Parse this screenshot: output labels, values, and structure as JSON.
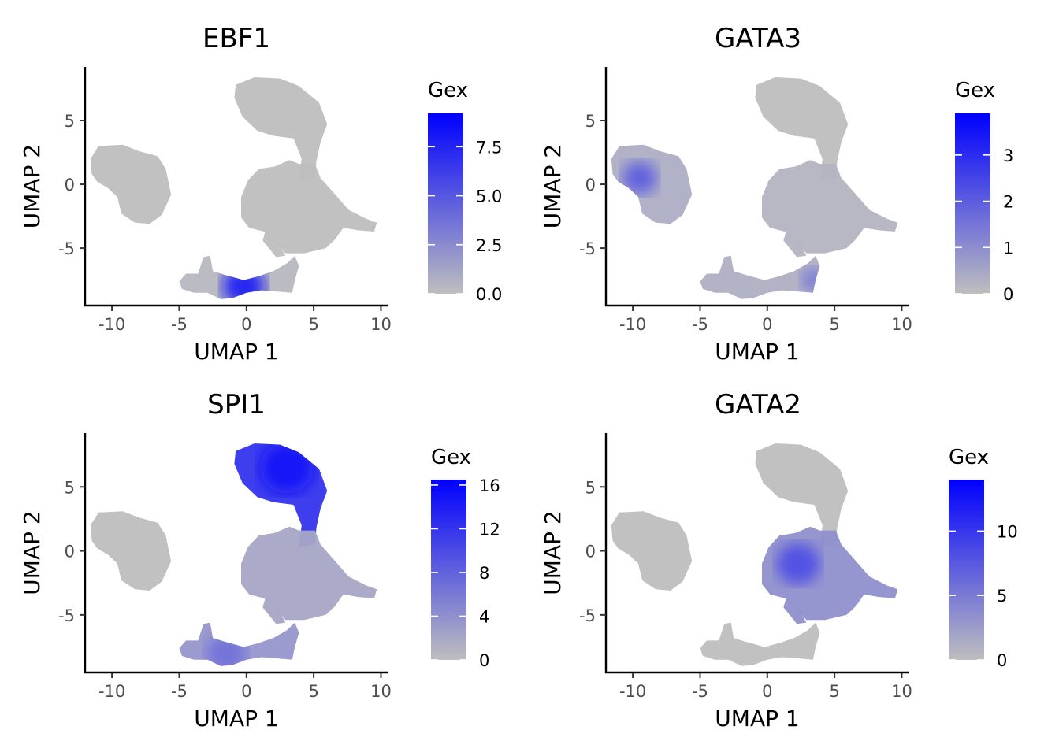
{
  "chart_data": [
    {
      "type": "scatter",
      "title": "EBF1",
      "xlabel": "UMAP 1",
      "ylabel": "UMAP 2",
      "xlim": [
        -12,
        10.5
      ],
      "ylim": [
        -9.5,
        9.2
      ],
      "x_ticks": [
        -10,
        -5,
        0,
        5,
        10
      ],
      "y_ticks": [
        -5,
        0,
        5
      ],
      "x_tick_labels": [
        "-10",
        "-5",
        "0",
        "5",
        "10"
      ],
      "y_tick_labels": [
        "-5",
        "0",
        "5"
      ],
      "grid": false,
      "legend": {
        "title": "Gex",
        "position": "right",
        "min": 0,
        "max": 9.2,
        "ticks": [
          0,
          2.5,
          5,
          7.5
        ],
        "tick_labels": [
          "0.0",
          "2.5",
          "5.0",
          "7.5"
        ],
        "low_color": "#bebebe",
        "high_color": "#0000ff"
      },
      "clusters": [
        {
          "name": "left",
          "level": 0.0,
          "hot": []
        },
        {
          "name": "top",
          "level": 0.0,
          "hot": []
        },
        {
          "name": "center",
          "level": 0.0,
          "hot": []
        },
        {
          "name": "bottom",
          "level": 0.35,
          "hot": [
            {
              "x": -0.2,
              "y": -8.0,
              "r": 1.6,
              "level": 8.5
            }
          ]
        }
      ]
    },
    {
      "type": "scatter",
      "title": "GATA3",
      "xlabel": "UMAP 1",
      "ylabel": "UMAP 2",
      "xlim": [
        -12,
        10.5
      ],
      "ylim": [
        -9.5,
        9.2
      ],
      "x_ticks": [
        -10,
        -5,
        0,
        5,
        10
      ],
      "y_ticks": [
        -5,
        0,
        5
      ],
      "x_tick_labels": [
        "-10",
        "-5",
        "0",
        "5",
        "10"
      ],
      "y_tick_labels": [
        "-5",
        "0",
        "5"
      ],
      "grid": false,
      "legend": {
        "title": "Gex",
        "position": "right",
        "min": 0,
        "max": 3.9,
        "ticks": [
          0,
          1,
          2,
          3
        ],
        "tick_labels": [
          "0",
          "1",
          "2",
          "3"
        ],
        "low_color": "#bebebe",
        "high_color": "#0000ff"
      },
      "clusters": [
        {
          "name": "left",
          "level": 0.35,
          "hot": [
            {
              "x": -9.5,
              "y": 0.5,
              "r": 1.3,
              "level": 2.2
            }
          ]
        },
        {
          "name": "top",
          "level": 0.0,
          "hot": []
        },
        {
          "name": "center",
          "level": 0.2,
          "hot": []
        },
        {
          "name": "bottom",
          "level": 0.3,
          "hot": [
            {
              "x": 3.5,
              "y": -7.5,
              "r": 1.0,
              "level": 1.5
            }
          ]
        }
      ]
    },
    {
      "type": "scatter",
      "title": "SPI1",
      "xlabel": "UMAP 1",
      "ylabel": "UMAP 2",
      "xlim": [
        -12,
        10.5
      ],
      "ylim": [
        -9.5,
        9.2
      ],
      "x_ticks": [
        -10,
        -5,
        0,
        5,
        10
      ],
      "y_ticks": [
        -5,
        0,
        5
      ],
      "x_tick_labels": [
        "-10",
        "-5",
        "0",
        "5",
        "10"
      ],
      "y_tick_labels": [
        "-5",
        "0",
        "5"
      ],
      "grid": false,
      "legend": {
        "title": "Gex",
        "position": "right",
        "min": 0,
        "max": 16.5,
        "ticks": [
          0,
          4,
          8,
          12,
          16
        ],
        "tick_labels": [
          "0",
          "4",
          "8",
          "12",
          "16"
        ],
        "low_color": "#bebebe",
        "high_color": "#0000ff"
      },
      "clusters": [
        {
          "name": "left",
          "level": 0.0,
          "hot": []
        },
        {
          "name": "top",
          "level": 12.0,
          "hot": [
            {
              "x": 3.0,
              "y": 6.5,
              "r": 2.0,
              "level": 15.0
            }
          ]
        },
        {
          "name": "center",
          "level": 2.0,
          "hot": []
        },
        {
          "name": "bottom",
          "level": 3.5,
          "hot": [
            {
              "x": -1.5,
              "y": -8.0,
              "r": 1.5,
              "level": 7.0
            }
          ]
        }
      ]
    },
    {
      "type": "scatter",
      "title": "GATA2",
      "xlabel": "UMAP 1",
      "ylabel": "UMAP 2",
      "xlim": [
        -12,
        10.5
      ],
      "ylim": [
        -9.5,
        9.2
      ],
      "x_ticks": [
        -10,
        -5,
        0,
        5,
        10
      ],
      "y_ticks": [
        -5,
        0,
        5
      ],
      "x_tick_labels": [
        "-10",
        "-5",
        "0",
        "5",
        "10"
      ],
      "y_tick_labels": [
        "-5",
        "0",
        "5"
      ],
      "grid": false,
      "legend": {
        "title": "Gex",
        "position": "right",
        "min": 0,
        "max": 14,
        "ticks": [
          0,
          5,
          10
        ],
        "tick_labels": [
          "0",
          "5",
          "10"
        ],
        "low_color": "#bebebe",
        "high_color": "#0000ff"
      },
      "clusters": [
        {
          "name": "left",
          "level": 0.0,
          "hot": []
        },
        {
          "name": "top",
          "level": 0.0,
          "hot": []
        },
        {
          "name": "center",
          "level": 3.5,
          "hot": [
            {
              "x": 2.3,
              "y": -1.0,
              "r": 1.6,
              "level": 9.0
            }
          ]
        },
        {
          "name": "bottom",
          "level": 0.0,
          "hot": []
        }
      ]
    }
  ]
}
